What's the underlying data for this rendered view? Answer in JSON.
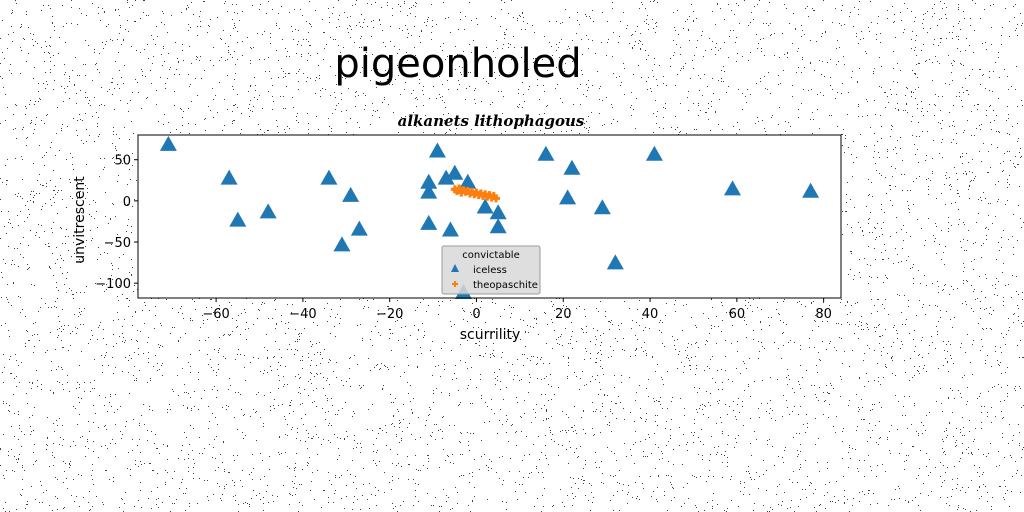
{
  "chart_data": {
    "type": "scatter",
    "suptitle": "pigeonholed",
    "title": "alkanets lithophagous",
    "xlabel": "scurrility",
    "ylabel": "unvitrescent",
    "xlim": [
      -78,
      84
    ],
    "ylim": [
      -118,
      80
    ],
    "xticks": [
      -60,
      -40,
      -20,
      0,
      20,
      40,
      60,
      80
    ],
    "yticks": [
      50,
      0,
      -50,
      -100
    ],
    "grid": false,
    "legend": {
      "title": "convictable",
      "placement": "lower-center"
    },
    "series": [
      {
        "name": "iceless",
        "marker": "triangle",
        "color": "#1f77b4",
        "points": [
          [
            -71,
            68
          ],
          [
            -57,
            27
          ],
          [
            -55,
            -24
          ],
          [
            -48,
            -14
          ],
          [
            -34,
            27
          ],
          [
            -31,
            -54
          ],
          [
            -29,
            6
          ],
          [
            -27,
            -35
          ],
          [
            -11,
            10
          ],
          [
            -11,
            22
          ],
          [
            -11,
            -28
          ],
          [
            -9,
            60
          ],
          [
            -7,
            27
          ],
          [
            -6,
            -36
          ],
          [
            -5,
            33
          ],
          [
            -3,
            -112
          ],
          [
            -2,
            22
          ],
          [
            2,
            -8
          ],
          [
            5,
            -15
          ],
          [
            5,
            -32
          ],
          [
            16,
            56
          ],
          [
            21,
            3
          ],
          [
            22,
            39
          ],
          [
            29,
            -9
          ],
          [
            32,
            -76
          ],
          [
            41,
            56
          ],
          [
            59,
            14
          ],
          [
            77,
            11
          ]
        ]
      },
      {
        "name": "theopaschite",
        "marker": "plus",
        "color": "#ff7f0e",
        "points": [
          [
            -5,
            14
          ],
          [
            -4.5,
            12
          ],
          [
            -4,
            15
          ],
          [
            -3.5,
            10
          ],
          [
            -3,
            13
          ],
          [
            -2.5,
            11
          ],
          [
            -2,
            12
          ],
          [
            -1.5,
            9
          ],
          [
            -1,
            11
          ],
          [
            -0.5,
            8
          ],
          [
            0,
            10
          ],
          [
            0.5,
            7
          ],
          [
            1,
            9
          ],
          [
            1.5,
            6
          ],
          [
            2,
            8
          ],
          [
            2.5,
            5
          ],
          [
            3,
            7
          ],
          [
            3.5,
            4
          ],
          [
            4,
            6
          ],
          [
            4.5,
            3
          ]
        ]
      }
    ]
  }
}
